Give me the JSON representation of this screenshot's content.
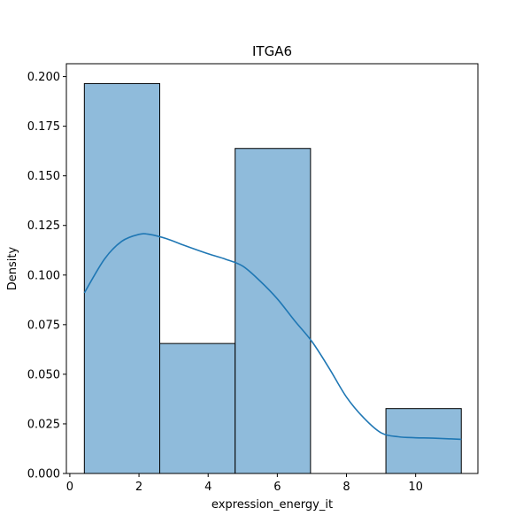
{
  "chart_data": {
    "type": "bar",
    "subtype": "histogram-with-kde",
    "title": "ITGA6",
    "xlabel": "expression_energy_it",
    "ylabel": "Density",
    "xlim": [
      -0.1,
      11.8
    ],
    "ylim": [
      0,
      0.2065
    ],
    "xticks": [
      0,
      2,
      4,
      6,
      8,
      10
    ],
    "xtick_labels": [
      "0",
      "2",
      "4",
      "6",
      "8",
      "10"
    ],
    "yticks": [
      0.0,
      0.025,
      0.05,
      0.075,
      0.1,
      0.125,
      0.15,
      0.175,
      0.2
    ],
    "ytick_labels": [
      "0.000",
      "0.025",
      "0.050",
      "0.075",
      "0.100",
      "0.125",
      "0.150",
      "0.175",
      "0.200"
    ],
    "grid": false,
    "bins": [
      {
        "x0": 0.42,
        "x1": 2.6,
        "density": 0.1965
      },
      {
        "x0": 2.6,
        "x1": 4.78,
        "density": 0.0655
      },
      {
        "x0": 4.78,
        "x1": 6.96,
        "density": 0.1638
      },
      {
        "x0": 6.96,
        "x1": 9.14,
        "density": 0.0
      },
      {
        "x0": 9.14,
        "x1": 11.32,
        "density": 0.0327
      }
    ],
    "kde": {
      "x": [
        0.42,
        1.0,
        1.5,
        2.0,
        2.3,
        2.8,
        3.3,
        4.0,
        4.5,
        5.0,
        5.5,
        6.0,
        6.5,
        7.0,
        7.5,
        8.0,
        8.5,
        9.0,
        9.5,
        10.0,
        10.5,
        11.32
      ],
      "y": [
        0.091,
        0.108,
        0.117,
        0.1205,
        0.1205,
        0.1183,
        0.115,
        0.1107,
        0.108,
        0.1045,
        0.097,
        0.088,
        0.077,
        0.0665,
        0.053,
        0.0385,
        0.028,
        0.0205,
        0.0185,
        0.018,
        0.0178,
        0.0172
      ]
    },
    "colors": {
      "bar_fill": "#8fbbdb",
      "bar_edge": "#000000",
      "kde_line": "#1f77b4"
    }
  }
}
